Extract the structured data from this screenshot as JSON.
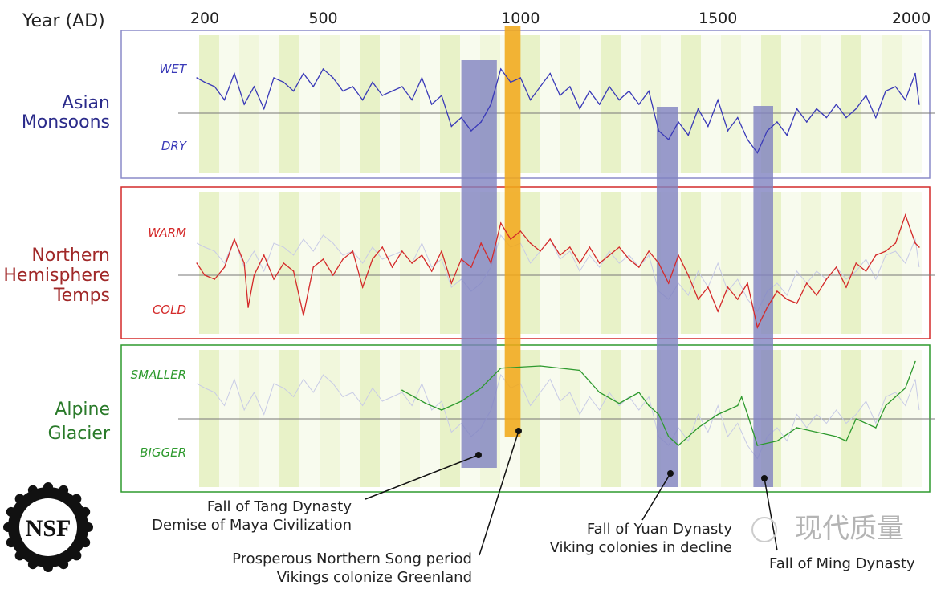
{
  "chart_data": {
    "type": "line",
    "xlabel": "Year (AD)",
    "x_ticks": [
      200,
      500,
      1000,
      1500,
      2000
    ],
    "xlim": [
      180,
      2015
    ],
    "panels": [
      {
        "name": "Asian Monsoons",
        "title_lines": [
          "Asian",
          "Monsoons"
        ],
        "top_label": "WET",
        "bottom_label": "DRY",
        "color": "#3a3ab8",
        "ylim": [
          -1.5,
          1.5
        ],
        "series": {
          "years": [
            180,
            200,
            225,
            250,
            275,
            300,
            325,
            350,
            375,
            400,
            425,
            450,
            475,
            500,
            525,
            550,
            575,
            600,
            625,
            650,
            675,
            700,
            725,
            750,
            775,
            800,
            825,
            850,
            875,
            900,
            925,
            950,
            975,
            1000,
            1025,
            1050,
            1075,
            1100,
            1125,
            1150,
            1175,
            1200,
            1225,
            1250,
            1275,
            1300,
            1325,
            1350,
            1375,
            1400,
            1425,
            1450,
            1475,
            1500,
            1525,
            1550,
            1575,
            1600,
            1625,
            1650,
            1675,
            1700,
            1725,
            1750,
            1775,
            1800,
            1825,
            1850,
            1875,
            1900,
            1925,
            1950,
            1975,
            2000,
            2010
          ],
          "values": [
            0.8,
            0.7,
            0.6,
            0.3,
            0.9,
            0.2,
            0.6,
            0.1,
            0.8,
            0.7,
            0.5,
            0.9,
            0.6,
            1.0,
            0.8,
            0.5,
            0.6,
            0.3,
            0.7,
            0.4,
            0.5,
            0.6,
            0.3,
            0.8,
            0.2,
            0.4,
            -0.3,
            -0.1,
            -0.4,
            -0.2,
            0.2,
            1.0,
            0.7,
            0.8,
            0.3,
            0.6,
            0.9,
            0.4,
            0.6,
            0.1,
            0.5,
            0.2,
            0.6,
            0.3,
            0.5,
            0.2,
            0.5,
            -0.4,
            -0.6,
            -0.2,
            -0.5,
            0.1,
            -0.3,
            0.3,
            -0.4,
            -0.1,
            -0.6,
            -0.9,
            -0.4,
            -0.2,
            -0.5,
            0.1,
            -0.2,
            0.1,
            -0.1,
            0.2,
            -0.1,
            0.1,
            0.4,
            -0.1,
            0.5,
            0.6,
            0.3,
            0.9,
            0.2
          ]
        }
      },
      {
        "name": "Northern Hemisphere Temps",
        "title_lines": [
          "Northern",
          "Hemisphere",
          "Temps"
        ],
        "top_label": "WARM",
        "bottom_label": "COLD",
        "color": "#d42a2a",
        "ylim": [
          -1.5,
          1.5
        ],
        "series": {
          "years": [
            180,
            200,
            225,
            250,
            275,
            300,
            310,
            325,
            350,
            375,
            400,
            425,
            450,
            475,
            500,
            525,
            550,
            575,
            600,
            625,
            650,
            675,
            700,
            725,
            750,
            775,
            800,
            825,
            850,
            875,
            900,
            925,
            950,
            975,
            1000,
            1025,
            1050,
            1075,
            1100,
            1125,
            1150,
            1175,
            1200,
            1225,
            1250,
            1275,
            1300,
            1325,
            1350,
            1375,
            1400,
            1425,
            1450,
            1475,
            1500,
            1525,
            1550,
            1575,
            1600,
            1625,
            1650,
            1675,
            1700,
            1725,
            1750,
            1775,
            1800,
            1825,
            1850,
            1875,
            1900,
            1925,
            1950,
            1975,
            2000,
            2010
          ],
          "values": [
            0.3,
            0,
            -0.1,
            0.2,
            0.9,
            0.3,
            -0.8,
            0,
            0.5,
            -0.1,
            0.3,
            0.1,
            -1,
            0.2,
            0.4,
            0,
            0.4,
            0.6,
            -0.3,
            0.4,
            0.7,
            0.2,
            0.6,
            0.3,
            0.5,
            0.1,
            0.6,
            -0.2,
            0.4,
            0.2,
            0.8,
            0.3,
            1.3,
            0.9,
            1.1,
            0.8,
            0.6,
            0.9,
            0.5,
            0.7,
            0.3,
            0.7,
            0.3,
            0.5,
            0.7,
            0.4,
            0.2,
            0.6,
            0.3,
            -0.2,
            0.5,
            0,
            -0.6,
            -0.3,
            -0.9,
            -0.3,
            -0.6,
            -0.2,
            -1.3,
            -0.8,
            -0.4,
            -0.6,
            -0.7,
            -0.2,
            -0.5,
            -0.1,
            0.2,
            -0.3,
            0.3,
            0.1,
            0.5,
            0.6,
            0.8,
            1.5,
            0.8,
            0.7
          ]
        }
      },
      {
        "name": "Alpine Glacier",
        "title_lines": [
          "Alpine",
          "Glacier"
        ],
        "top_label": "SMALLER",
        "bottom_label": "BIGGER",
        "color": "#2e9a2e",
        "ylim": [
          -1.5,
          1.5
        ],
        "series": {
          "years": [
            700,
            760,
            800,
            850,
            900,
            950,
            1050,
            1150,
            1200,
            1250,
            1300,
            1325,
            1350,
            1375,
            1400,
            1450,
            1500,
            1550,
            1560,
            1575,
            1600,
            1650,
            1700,
            1750,
            1800,
            1825,
            1850,
            1900,
            1925,
            1950,
            1975,
            2000
          ],
          "values": [
            0.65,
            0.35,
            0.2,
            0.4,
            0.7,
            1.15,
            1.2,
            1.1,
            0.6,
            0.35,
            0.6,
            0.3,
            0.1,
            -0.4,
            -0.6,
            -0.2,
            0.1,
            0.3,
            0.5,
            0.1,
            -0.6,
            -0.5,
            -0.2,
            -0.3,
            -0.4,
            -0.5,
            0,
            -0.2,
            0.3,
            0.5,
            0.7,
            1.3
          ]
        }
      }
    ],
    "highlight_bands": [
      {
        "start": 850,
        "end": 940,
        "color": "#7f82c0",
        "label_lines": [
          "Fall of Tang Dynasty",
          "Demise of Maya Civilization"
        ]
      },
      {
        "start": 960,
        "end": 1000,
        "color": "#f0a81a",
        "label_lines": [
          "Prosperous Northern Song period",
          "Vikings colonize Greenland"
        ]
      },
      {
        "start": 1345,
        "end": 1400,
        "color": "#7f82c0",
        "label_lines": [
          "Fall of Yuan Dynasty",
          "Viking colonies in decline"
        ]
      },
      {
        "start": 1590,
        "end": 1640,
        "color": "#7f82c0",
        "label_lines": [
          "Fall of Ming Dynasty"
        ]
      }
    ]
  },
  "logo": {
    "text": "NSF"
  },
  "watermark": {
    "text": "现代质量"
  }
}
